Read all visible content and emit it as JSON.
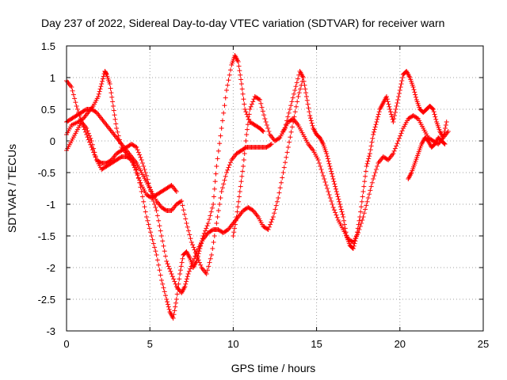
{
  "chart_data": {
    "type": "scatter",
    "title": "Day 237 of 2022, Sidereal Day-to-day VTEC variation (SDTVAR) for receiver warn",
    "xlabel": "GPS time / hours",
    "ylabel": "SDTVAR / TECUs",
    "xlim": [
      0,
      25
    ],
    "ylim": [
      -3,
      1.5
    ],
    "xticks": [
      "0",
      "5",
      "10",
      "15",
      "20",
      "25"
    ],
    "yticks": [
      "-3",
      "-2.5",
      "-2",
      "-1.5",
      "-1",
      "-0.5",
      "0",
      "0.5",
      "1",
      "1.5"
    ],
    "grid": true,
    "marker": "+",
    "color": "#ff0000",
    "series": [
      {
        "x": [
          0.0,
          0.3,
          0.7,
          1.0,
          1.3,
          1.6,
          1.9,
          2.1,
          2.3,
          2.4,
          2.6,
          2.8,
          3.0,
          3.3,
          3.6,
          3.9,
          4.2,
          4.5,
          4.8,
          5.1,
          5.4,
          5.7,
          6.0,
          6.2,
          6.4,
          6.6,
          6.8,
          7.0,
          7.2,
          7.4,
          7.6,
          7.8,
          8.0,
          8.2,
          8.5,
          8.8,
          9.0,
          9.3,
          9.6,
          9.9,
          10.1,
          10.3,
          10.5,
          10.7,
          11.0,
          11.3,
          11.6,
          11.8
        ],
        "y": [
          0.1,
          0.25,
          0.3,
          0.35,
          0.45,
          0.55,
          0.7,
          0.9,
          1.1,
          1.05,
          0.9,
          0.55,
          0.2,
          -0.1,
          -0.2,
          -0.3,
          -0.45,
          -0.8,
          -1.2,
          -1.5,
          -1.8,
          -2.2,
          -2.5,
          -2.7,
          -2.8,
          -2.5,
          -2.1,
          -1.8,
          -1.75,
          -1.85,
          -2.0,
          -1.9,
          -1.7,
          -1.5,
          -1.3,
          -1.0,
          -0.4,
          0.2,
          0.8,
          1.2,
          1.35,
          1.25,
          0.9,
          0.5,
          0.3,
          0.25,
          0.2,
          0.15
        ]
      },
      {
        "x": [
          0.0,
          0.3,
          0.6,
          0.9,
          1.2,
          1.5,
          1.8,
          2.1,
          2.4,
          2.7,
          3.0,
          3.3,
          3.6,
          3.9,
          4.2,
          4.5,
          4.8,
          5.1,
          5.4,
          5.7,
          6.0,
          6.3,
          6.6,
          6.9,
          7.1,
          7.3,
          7.6,
          7.9,
          8.2,
          8.5,
          8.8,
          9.1,
          9.4,
          9.7,
          10.0,
          10.3,
          10.6,
          10.9,
          11.2,
          11.5,
          11.8,
          12.1,
          12.4,
          12.7,
          13.0,
          13.3,
          13.6,
          13.9,
          14.2
        ],
        "y": [
          0.95,
          0.85,
          0.55,
          0.3,
          0.1,
          -0.1,
          -0.3,
          -0.35,
          -0.35,
          -0.3,
          -0.2,
          -0.15,
          -0.1,
          -0.05,
          -0.1,
          -0.3,
          -0.55,
          -0.85,
          -1.1,
          -1.5,
          -1.9,
          -2.1,
          -2.3,
          -2.4,
          -2.3,
          -2.1,
          -1.9,
          -1.7,
          -1.55,
          -1.45,
          -1.4,
          -1.4,
          -1.45,
          -1.4,
          -1.3,
          -1.2,
          -1.1,
          -1.05,
          -1.1,
          -1.2,
          -1.35,
          -1.4,
          -1.2,
          -0.9,
          -0.5,
          -0.1,
          0.3,
          0.7,
          1.0
        ]
      },
      {
        "x": [
          0.0,
          0.3,
          0.6,
          0.9,
          1.2,
          1.5,
          1.8,
          2.1,
          2.4,
          2.7,
          3.0,
          3.3,
          3.6,
          3.9,
          4.2,
          4.5,
          4.8,
          5.1,
          5.4,
          5.7,
          6.0,
          6.3,
          6.6,
          6.9,
          7.2,
          7.5,
          7.8,
          8.1,
          8.4,
          8.7,
          9.0,
          9.3,
          9.6,
          9.9,
          10.2,
          10.5,
          10.8,
          11.1,
          11.4,
          11.7,
          12.0,
          12.3
        ],
        "y": [
          0.3,
          0.35,
          0.4,
          0.45,
          0.5,
          0.5,
          0.45,
          0.35,
          0.25,
          0.15,
          0.05,
          -0.05,
          -0.15,
          -0.25,
          -0.35,
          -0.5,
          -0.65,
          -0.8,
          -0.95,
          -1.05,
          -1.1,
          -1.1,
          -1.0,
          -0.95,
          -1.3,
          -1.6,
          -1.8,
          -2.0,
          -2.1,
          -1.8,
          -1.3,
          -0.8,
          -0.5,
          -0.3,
          -0.2,
          -0.15,
          -0.1,
          -0.1,
          -0.1,
          -0.1,
          -0.1,
          -0.05
        ]
      },
      {
        "x": [
          0.0,
          0.3,
          0.6,
          0.9,
          1.2,
          1.5,
          1.8,
          2.1,
          2.4,
          2.7,
          3.0,
          3.3,
          3.6,
          3.9,
          4.2,
          4.5,
          4.8,
          5.1,
          5.4,
          5.7,
          6.0,
          6.3,
          6.6
        ],
        "y": [
          -0.15,
          0.0,
          0.15,
          0.3,
          0.2,
          0.0,
          -0.3,
          -0.45,
          -0.4,
          -0.35,
          -0.3,
          -0.25,
          -0.25,
          -0.3,
          -0.5,
          -0.7,
          -0.85,
          -0.9,
          -0.85,
          -0.8,
          -0.75,
          -0.7,
          -0.8
        ]
      },
      {
        "x": [
          10.0,
          10.2,
          10.4,
          10.6,
          10.8,
          11.0,
          11.3,
          11.6,
          11.9,
          12.2,
          12.5,
          12.8,
          13.1,
          13.4,
          13.7,
          14.0,
          14.2,
          14.4,
          14.6,
          14.8,
          15.0,
          15.2,
          15.4,
          15.6,
          15.8,
          16.0,
          16.2,
          16.4,
          16.6,
          16.8,
          17.0,
          17.2,
          17.4,
          17.6,
          17.8,
          18.0,
          18.2,
          18.4,
          18.6,
          18.8,
          19.0,
          19.2,
          19.4,
          19.6,
          19.8,
          20.0,
          20.2,
          20.4,
          20.6,
          20.8,
          21.0,
          21.2,
          21.4,
          21.6,
          21.8,
          22.0,
          22.2,
          22.4,
          22.6,
          22.8
        ],
        "y": [
          -1.5,
          -1.2,
          -0.8,
          -0.4,
          0.1,
          0.5,
          0.7,
          0.65,
          0.35,
          0.1,
          0.0,
          0.05,
          0.2,
          0.5,
          0.8,
          1.1,
          1.0,
          0.7,
          0.4,
          0.2,
          0.1,
          0.05,
          -0.05,
          -0.2,
          -0.4,
          -0.6,
          -0.8,
          -1.0,
          -1.2,
          -1.5,
          -1.65,
          -1.7,
          -1.5,
          -1.2,
          -0.8,
          -0.4,
          -0.2,
          0.1,
          0.3,
          0.5,
          0.6,
          0.7,
          0.5,
          0.3,
          0.55,
          0.8,
          1.05,
          1.1,
          1.0,
          0.85,
          0.65,
          0.5,
          0.45,
          0.5,
          0.55,
          0.5,
          0.3,
          0.15,
          0.05,
          0.3
        ]
      },
      {
        "x": [
          13.0,
          13.3,
          13.6,
          13.9,
          14.2,
          14.5,
          14.8,
          15.1,
          15.4,
          15.7,
          16.0,
          16.3,
          16.6,
          16.9,
          17.2,
          17.5,
          17.8,
          18.1,
          18.4,
          18.7,
          19.0,
          19.3,
          19.6,
          19.9,
          20.2,
          20.5,
          20.8,
          21.1,
          21.4,
          21.7,
          22.0,
          22.3,
          22.6,
          22.9
        ],
        "y": [
          0.15,
          0.3,
          0.35,
          0.25,
          0.1,
          -0.05,
          -0.15,
          -0.3,
          -0.55,
          -0.8,
          -1.05,
          -1.25,
          -1.4,
          -1.55,
          -1.6,
          -1.45,
          -1.2,
          -0.9,
          -0.6,
          -0.35,
          -0.25,
          -0.3,
          -0.2,
          0.0,
          0.2,
          0.35,
          0.4,
          0.35,
          0.2,
          0.05,
          0.0,
          -0.05,
          0.05,
          0.15
        ]
      },
      {
        "x": [
          20.5,
          20.7,
          20.9,
          21.1,
          21.3,
          21.5,
          21.7,
          21.9,
          22.1,
          22.3,
          22.5,
          22.7
        ],
        "y": [
          -0.6,
          -0.5,
          -0.35,
          -0.2,
          -0.05,
          0.05,
          0.0,
          -0.1,
          -0.05,
          0.05,
          0.0,
          -0.05
        ]
      }
    ]
  }
}
